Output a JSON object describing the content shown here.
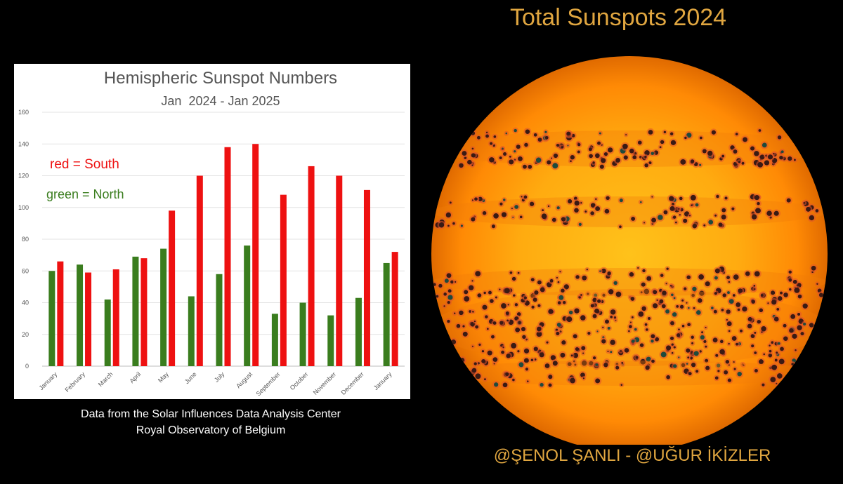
{
  "chart_data": {
    "type": "bar",
    "title": "Hemispheric Sunspot Numbers",
    "subtitle": "Jan  2024 - Jan 2025",
    "categories": [
      "January",
      "February",
      "March",
      "April",
      "May",
      "June",
      "July",
      "August",
      "September",
      "October",
      "November",
      "December",
      "January"
    ],
    "series": [
      {
        "name": "North",
        "color": "#3a7d1e",
        "values": [
          60,
          64,
          42,
          69,
          74,
          44,
          58,
          76,
          33,
          40,
          32,
          43,
          65
        ]
      },
      {
        "name": "South",
        "color": "#ee1111",
        "values": [
          66,
          59,
          61,
          68,
          98,
          120,
          138,
          140,
          108,
          126,
          120,
          111,
          72
        ]
      }
    ],
    "ylim": [
      0,
      160
    ],
    "yticks": [
      0,
      20,
      40,
      60,
      80,
      100,
      120,
      140,
      160
    ],
    "grid": true,
    "annotations": [
      {
        "text": "red = South",
        "color": "#ee1111"
      },
      {
        "text": "green = North",
        "color": "#3a7d1e"
      }
    ]
  },
  "captions": {
    "line1": "Data from the Solar Influences Data Analysis Center",
    "line2": "Royal Observatory of Belgium"
  },
  "sun": {
    "title": "Total Sunspots 2024",
    "credit": "@ŞENOL ŞANLI - @UĞUR İKİZLER"
  }
}
